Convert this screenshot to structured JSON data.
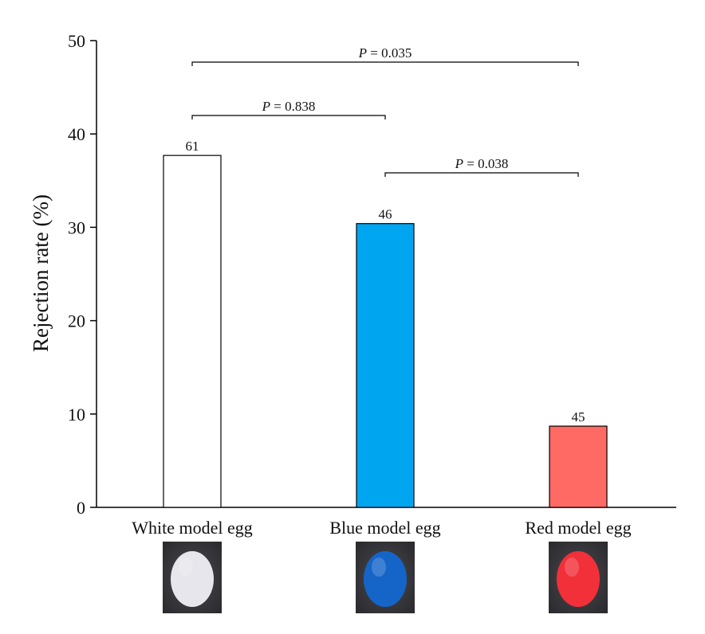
{
  "chart_data": {
    "type": "bar",
    "categories": [
      "White model egg",
      "Blue model egg",
      "Red model egg"
    ],
    "values": [
      37.7,
      30.4,
      8.7
    ],
    "bar_labels": [
      "61",
      "46",
      "45"
    ],
    "colors": {
      "White model egg": "#ffffff",
      "Blue model egg": "#00a5f0",
      "Red model egg": "#ff6a64"
    },
    "ylabel": "Rejection rate (%)",
    "xlabel": "",
    "ylim": [
      0,
      50
    ],
    "yticks": [
      "0",
      "10",
      "20",
      "30",
      "40",
      "50"
    ],
    "grid": false,
    "comparisons": [
      {
        "from": "White model egg",
        "to": "Red model egg",
        "p_symbol": "P",
        "text": " = 0.035"
      },
      {
        "from": "White model egg",
        "to": "Blue model egg",
        "p_symbol": "P",
        "text": " = 0.838"
      },
      {
        "from": "Blue model egg",
        "to": "Red model egg",
        "p_symbol": "P",
        "text": " = 0.038"
      }
    ],
    "egg_photos": [
      {
        "category": "White model egg",
        "egg_color": "#e6e6ec"
      },
      {
        "category": "Blue model egg",
        "egg_color": "#1565c8"
      },
      {
        "category": "Red model egg",
        "egg_color": "#f2303a"
      }
    ]
  }
}
